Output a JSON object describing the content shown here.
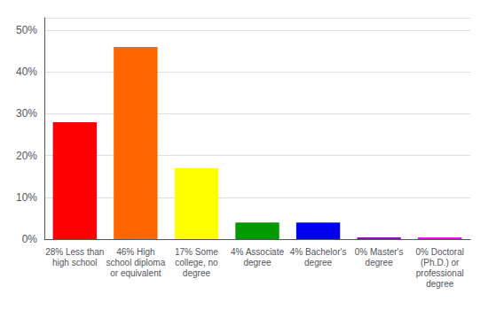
{
  "chart_data": {
    "type": "bar",
    "categories": [
      "28% Less than\nhigh school",
      "46% High\nschool diploma\nor equivalent",
      "17% Some\ncollege, no\ndegree",
      "4% Associate\ndegree",
      "4% Bachelor's\ndegree",
      "0% Master's\ndegree",
      "0% Doctoral\n(Ph.D.) or\nprofessional\ndegree"
    ],
    "values": [
      28,
      46,
      17,
      4,
      4,
      0,
      0
    ],
    "colors": [
      "#ff0000",
      "#ff6600",
      "#ffff00",
      "#009900",
      "#0000ee",
      "#9900cc",
      "#ff00ff"
    ],
    "ylim": [
      0,
      53
    ],
    "yticks": [
      {
        "value": 0,
        "label": "0%"
      },
      {
        "value": 10,
        "label": "10%"
      },
      {
        "value": 20,
        "label": "20%"
      },
      {
        "value": 30,
        "label": "30%"
      },
      {
        "value": 40,
        "label": "40%"
      },
      {
        "value": 50,
        "label": "50%"
      }
    ],
    "grid": true
  }
}
